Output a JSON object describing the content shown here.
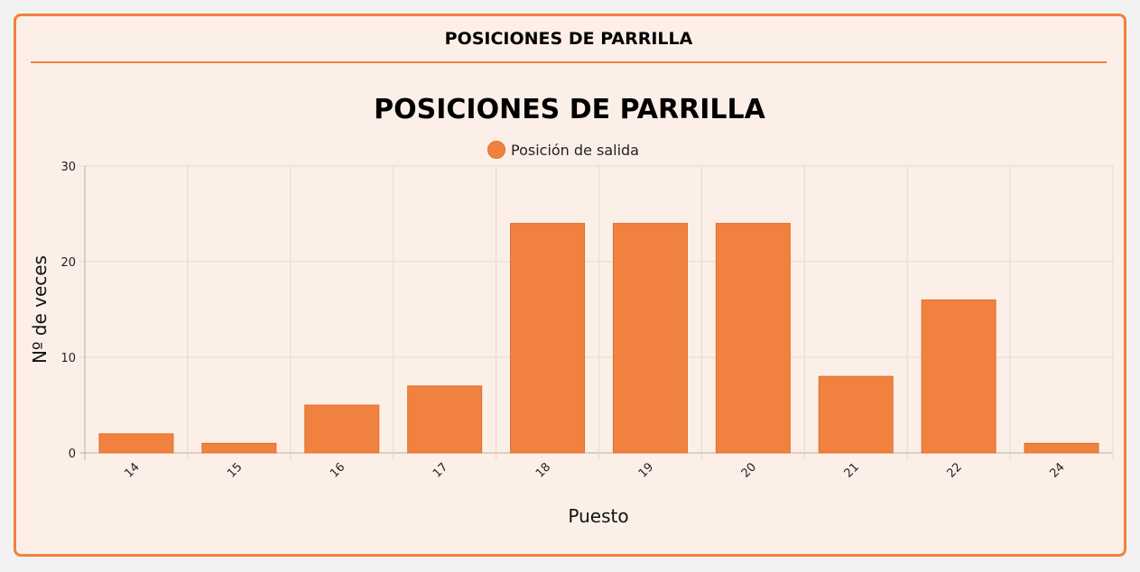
{
  "card": {
    "header_title": "POSICIONES DE PARRILLA"
  },
  "chart_data": {
    "type": "bar",
    "title": "POSICIONES DE PARRILLA",
    "legend": {
      "label": "Posición de salida",
      "position": "top"
    },
    "xlabel": "Puesto",
    "ylabel": "Nº de veces",
    "categories": [
      "14",
      "15",
      "16",
      "17",
      "18",
      "19",
      "20",
      "21",
      "22",
      "24"
    ],
    "series": [
      {
        "name": "Posición de salida",
        "values": [
          2,
          1,
          5,
          7,
          24,
          24,
          24,
          8,
          16,
          1
        ]
      }
    ],
    "ylim": [
      0,
      30
    ],
    "yticks": [
      0,
      10,
      20,
      30
    ],
    "grid": true,
    "colors": {
      "bar": "#f0813f",
      "bar_border": "#e07030",
      "grid": "#e3d8d2",
      "axis": "#b9b0ab"
    }
  }
}
